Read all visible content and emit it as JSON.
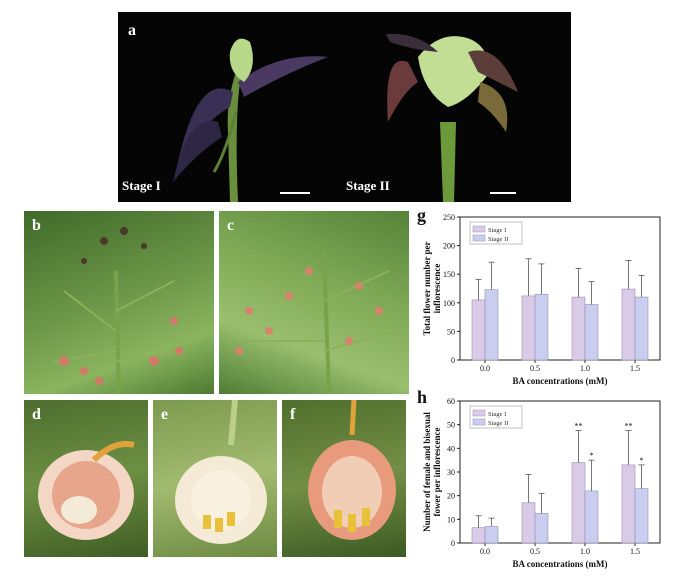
{
  "panels": {
    "a": {
      "label": "a",
      "stage_left": "Stage I",
      "stage_right": "Stage II"
    },
    "b": {
      "label": "b"
    },
    "c": {
      "label": "c"
    },
    "d": {
      "label": "d"
    },
    "e": {
      "label": "e"
    },
    "f": {
      "label": "f"
    },
    "g": {
      "label": "g"
    },
    "h": {
      "label": "h"
    }
  },
  "colors": {
    "stage1": "#d9cbe8",
    "stage2": "#c9cdf0",
    "edge": "#9a8fb0"
  },
  "chart_data": [
    {
      "id": "g",
      "type": "bar",
      "categories": [
        "0.0",
        "0.5",
        "1.0",
        "1.5"
      ],
      "xlabel": "BA concentrations (mM)",
      "ylabel_lines": [
        "Total flower number per",
        "inflorescence"
      ],
      "ylim": [
        0,
        250
      ],
      "yticks": [
        0,
        50,
        100,
        150,
        200,
        250
      ],
      "legend": "top-left",
      "series": [
        {
          "name": "Stage I",
          "values": [
            105,
            112,
            110,
            124
          ],
          "errors": [
            36,
            65,
            50,
            50
          ],
          "sig": [
            "",
            "",
            "",
            ""
          ]
        },
        {
          "name": "Stage II",
          "values": [
            123,
            115,
            97,
            110
          ],
          "errors": [
            48,
            53,
            40,
            38
          ],
          "sig": [
            "",
            "",
            "",
            ""
          ]
        }
      ]
    },
    {
      "id": "h",
      "type": "bar",
      "categories": [
        "0.0",
        "0.5",
        "1.0",
        "1.5"
      ],
      "xlabel": "BA concentrations (mM)",
      "ylabel_lines": [
        "Number of female and bisexual",
        "fower per inflorescence"
      ],
      "ylim": [
        0,
        60
      ],
      "yticks": [
        0,
        10,
        20,
        30,
        40,
        50,
        60
      ],
      "legend": "top-left",
      "series": [
        {
          "name": "Stage I",
          "values": [
            6.5,
            17,
            34,
            33
          ],
          "errors": [
            5,
            12,
            13.5,
            14.5
          ],
          "sig": [
            "",
            "",
            "**",
            "**"
          ]
        },
        {
          "name": "Stage II",
          "values": [
            7,
            12.5,
            22,
            23
          ],
          "errors": [
            3.5,
            8.5,
            13,
            10
          ],
          "sig": [
            "",
            "",
            "*",
            "*"
          ]
        }
      ]
    }
  ]
}
